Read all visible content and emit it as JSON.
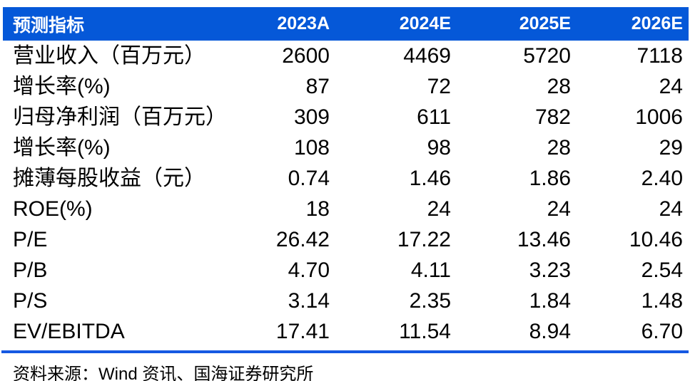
{
  "table": {
    "columns": [
      "预测指标",
      "2023A",
      "2024E",
      "2025E",
      "2026E"
    ],
    "rows": [
      {
        "label": "营业收入（百万元）",
        "values": [
          "2600",
          "4469",
          "5720",
          "7118"
        ]
      },
      {
        "label": "增长率(%)",
        "values": [
          "87",
          "72",
          "28",
          "24"
        ]
      },
      {
        "label": "归母净利润（百万元）",
        "values": [
          "309",
          "611",
          "782",
          "1006"
        ]
      },
      {
        "label": "增长率(%)",
        "values": [
          "108",
          "98",
          "28",
          "29"
        ]
      },
      {
        "label": "摊薄每股收益（元）",
        "values": [
          "0.74",
          "1.46",
          "1.86",
          "2.40"
        ]
      },
      {
        "label": "ROE(%)",
        "values": [
          "18",
          "24",
          "24",
          "24"
        ]
      },
      {
        "label": "P/E",
        "values": [
          "26.42",
          "17.22",
          "13.46",
          "10.46"
        ]
      },
      {
        "label": "P/B",
        "values": [
          "4.70",
          "4.11",
          "3.23",
          "2.54"
        ]
      },
      {
        "label": "P/S",
        "values": [
          "3.14",
          "2.35",
          "1.84",
          "1.48"
        ]
      },
      {
        "label": "EV/EBITDA",
        "values": [
          "17.41",
          "11.54",
          "8.94",
          "6.70"
        ]
      }
    ],
    "source_note": "资料来源：Wind 资讯、国海证券研究所"
  },
  "colors": {
    "header_bg": "#0558D8",
    "header_text": "#FFFFFF",
    "divider": "#1659E2",
    "body_text": "#000000"
  }
}
